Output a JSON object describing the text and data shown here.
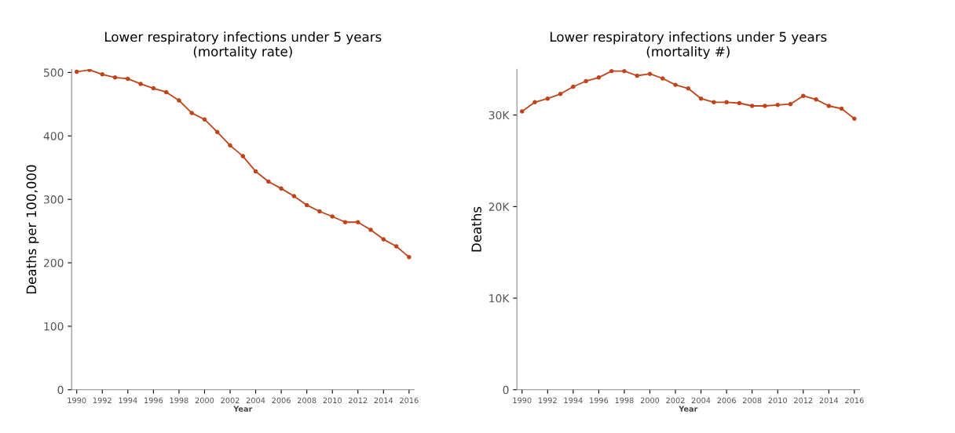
{
  "chart_data": [
    {
      "type": "line",
      "title": "Lower respiratory infections under 5 years\n(mortality rate)",
      "xlabel": "Year",
      "ylabel": "Deaths per 100,000",
      "x": [
        1990,
        1991,
        1992,
        1993,
        1994,
        1995,
        1996,
        1997,
        1998,
        1999,
        2000,
        2001,
        2002,
        2003,
        2004,
        2005,
        2006,
        2007,
        2008,
        2009,
        2010,
        2011,
        2012,
        2013,
        2014,
        2015,
        2016
      ],
      "series": [
        {
          "color": "#c0441a",
          "values": [
            501,
            504,
            497,
            492,
            490,
            482,
            475,
            469,
            456,
            436,
            426,
            406,
            385,
            368,
            344,
            328,
            317,
            305,
            291,
            281,
            273,
            264,
            264,
            252,
            237,
            226,
            209
          ]
        }
      ],
      "xlim": [
        1989.6,
        2016.4
      ],
      "xticks": [
        1990,
        1992,
        1994,
        1996,
        1998,
        2000,
        2002,
        2004,
        2006,
        2008,
        2010,
        2012,
        2014,
        2016
      ],
      "ylim": [
        0,
        505
      ],
      "yticks": [
        0,
        100,
        200,
        300,
        400,
        500
      ],
      "grid": false,
      "legend": false,
      "marker": "circle",
      "line_style": "solid"
    },
    {
      "type": "line",
      "title": "Lower respiratory infections under 5 years\n(mortality #)",
      "xlabel": "Year",
      "ylabel": "Deaths",
      "x": [
        1990,
        1991,
        1992,
        1993,
        1994,
        1995,
        1996,
        1997,
        1998,
        1999,
        2000,
        2001,
        2002,
        2003,
        2004,
        2005,
        2006,
        2007,
        2008,
        2009,
        2010,
        2011,
        2012,
        2013,
        2014,
        2015,
        2016
      ],
      "series": [
        {
          "color": "#c0441a",
          "values": [
            30400,
            31400,
            31800,
            32300,
            33100,
            33700,
            34100,
            34800,
            34800,
            34300,
            34500,
            34000,
            33300,
            32900,
            31800,
            31400,
            31400,
            31300,
            31000,
            31000,
            31100,
            31200,
            32100,
            31700,
            31000,
            30700,
            29600
          ]
        }
      ],
      "xlim": [
        1989.6,
        2016.4
      ],
      "xticks": [
        1990,
        1992,
        1994,
        1996,
        1998,
        2000,
        2002,
        2004,
        2006,
        2008,
        2010,
        2012,
        2014,
        2016
      ],
      "ylim": [
        0,
        35000
      ],
      "yticks": [
        0,
        {
          "value": 10000,
          "label": "10K"
        },
        {
          "value": 20000,
          "label": "20K"
        },
        {
          "value": 30000,
          "label": "30K"
        }
      ],
      "grid": false,
      "legend": false,
      "marker": "circle",
      "line_style": "solid"
    }
  ]
}
